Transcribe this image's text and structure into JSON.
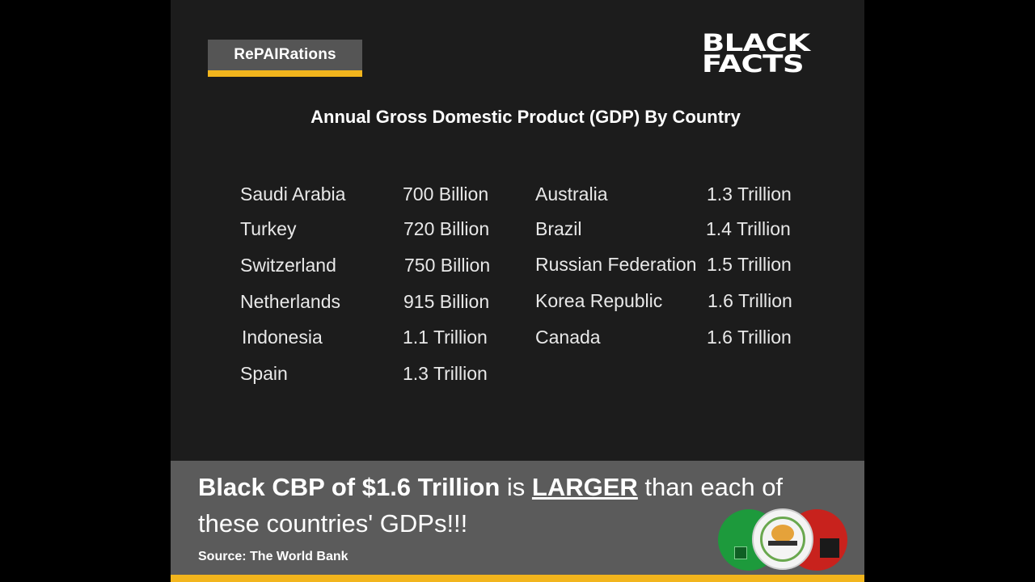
{
  "brand": {
    "label": "RePAIRations"
  },
  "logo": {
    "line1": "BLACK",
    "line2": "FACTS"
  },
  "heading": "Annual Gross Domestic Product (GDP) By Country",
  "left_column": [
    {
      "country": "Saudi Arabia",
      "gdp": "700 Billion"
    },
    {
      "country": "Turkey",
      "gdp": "720 Billion"
    },
    {
      "country": "Switzerland",
      "gdp": "750 Billion"
    },
    {
      "country": "Netherlands",
      "gdp": "915 Billion"
    },
    {
      "country": "Indonesia",
      "gdp": "1.1 Trillion"
    },
    {
      "country": "Spain",
      "gdp": "1.3 Trillion"
    }
  ],
  "right_column": [
    {
      "country": "Australia",
      "gdp": "1.3 Trillion"
    },
    {
      "country": "Brazil",
      "gdp": "1.4 Trillion"
    },
    {
      "country": "Russian Federation",
      "gdp": "1.5 Trillion"
    },
    {
      "country": "Korea Republic",
      "gdp": "1.6 Trillion"
    },
    {
      "country": "Canada",
      "gdp": "1.6 Trillion"
    }
  ],
  "claim": {
    "bold_part": "Black CBP of $1.6 Trillion",
    "is_word": " is ",
    "emphasis": "LARGER",
    "rest": " than each of these countries' GDPs!!!"
  },
  "source": "Source: The World Bank",
  "colors": {
    "accent": "#f2b51d",
    "panel": "#5b5b5b",
    "background": "#1c1c1c",
    "logo_green": "#1d9a3c",
    "logo_red": "#c8221d"
  },
  "icons": [
    "repairations-seal-icon",
    "green-circle-icon",
    "red-circle-icon"
  ]
}
